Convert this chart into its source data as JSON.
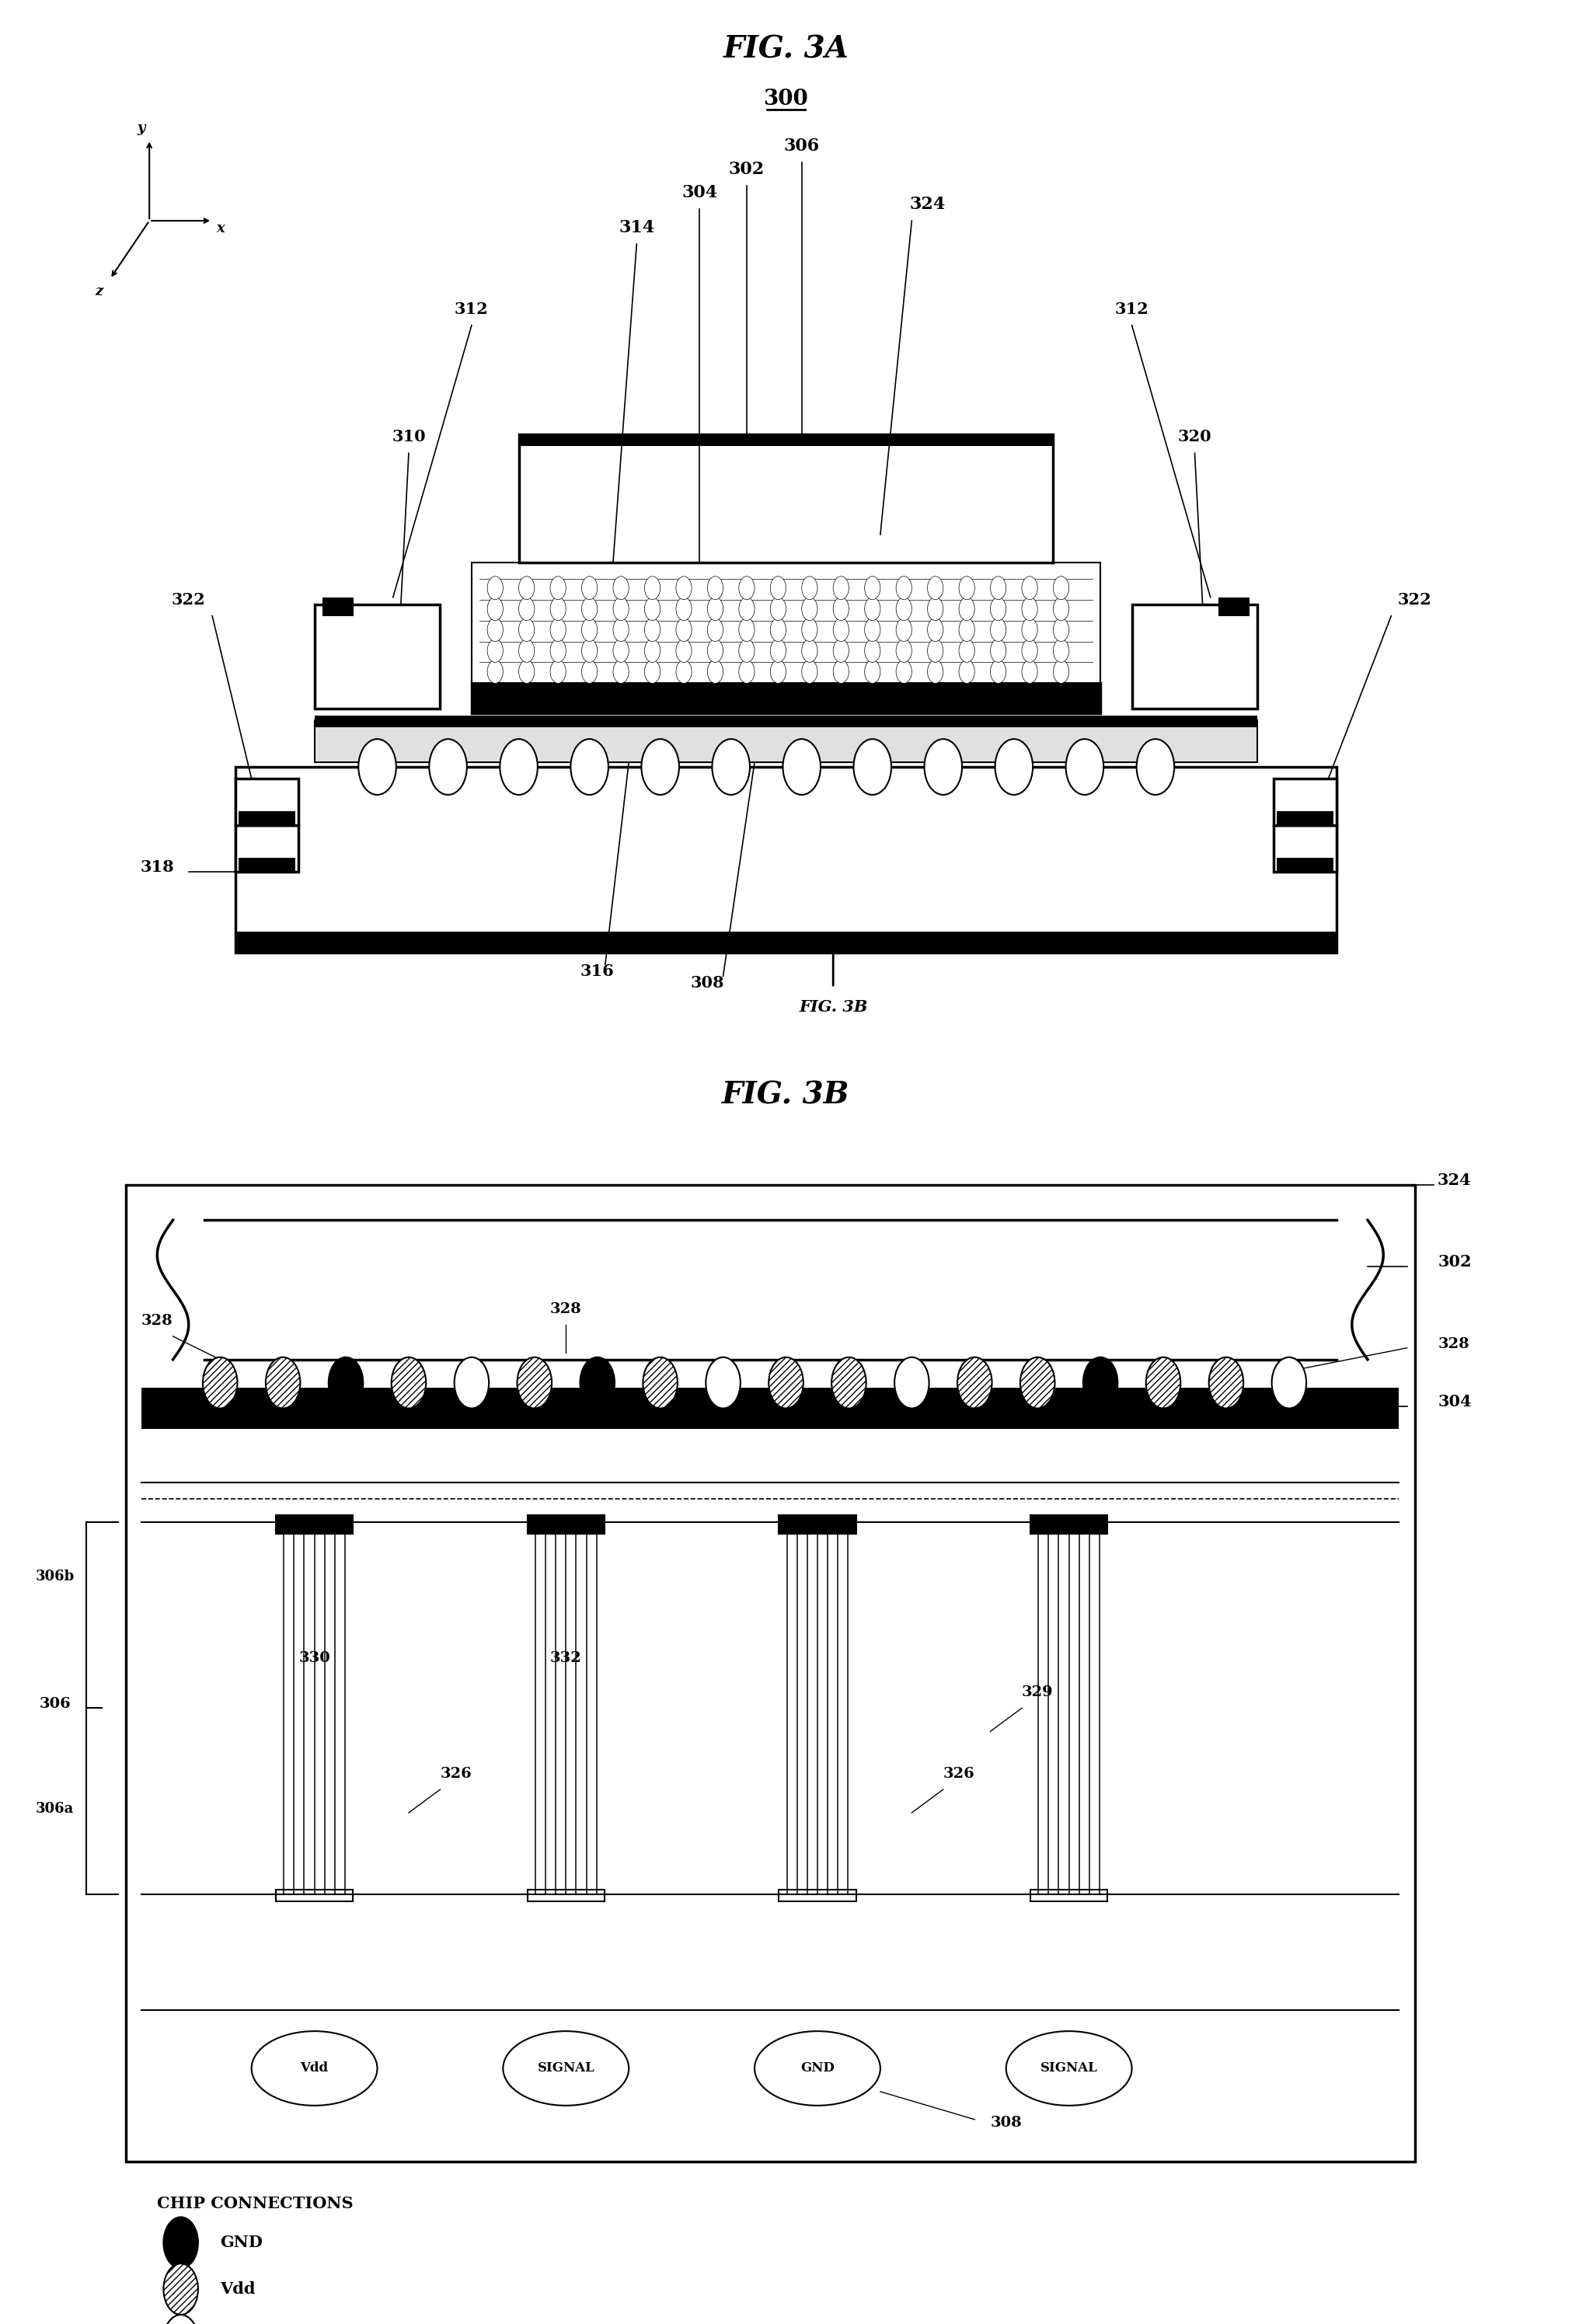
{
  "title_3a": "FIG. 3A",
  "title_3b": "FIG. 3B",
  "ref_300": "300",
  "background": "#ffffff",
  "line_color": "#000000",
  "fig_label_fontsize": 28,
  "ref_fontsize": 20,
  "body_fontsize": 16
}
